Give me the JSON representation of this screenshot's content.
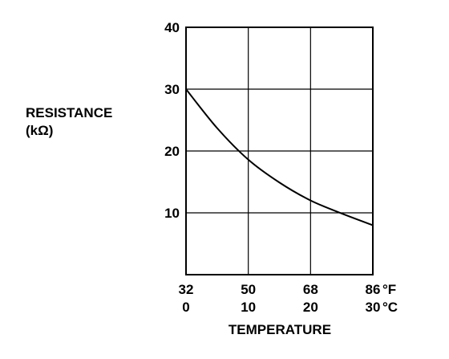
{
  "chart_data": {
    "type": "line",
    "title": "",
    "ylabel": [
      "RESISTANCE",
      "(kΩ)"
    ],
    "xlabel": "TEMPERATURE",
    "ylim": [
      0,
      40
    ],
    "xlim_celsius": [
      0,
      30
    ],
    "y_ticks": [
      "10",
      "20",
      "30",
      "40"
    ],
    "x_ticks": [
      {
        "celsius": 0,
        "fahrenheit": "32",
        "c_label": "0",
        "f_label": "32"
      },
      {
        "celsius": 10,
        "fahrenheit": "50",
        "c_label": "10",
        "f_label": "50"
      },
      {
        "celsius": 20,
        "fahrenheit": "68",
        "c_label": "20",
        "f_label": "68"
      },
      {
        "celsius": 30,
        "fahrenheit": "86",
        "c_label": "30",
        "f_label": "86"
      }
    ],
    "unit_fahrenheit": "°F",
    "unit_celsius": "°C",
    "grid": true,
    "series": [
      {
        "x_celsius": [
          0,
          5,
          10,
          15,
          20,
          25,
          30
        ],
        "y_kohm": [
          30,
          23.7,
          18.6,
          14.9,
          12.0,
          9.9,
          8.0
        ]
      }
    ]
  }
}
